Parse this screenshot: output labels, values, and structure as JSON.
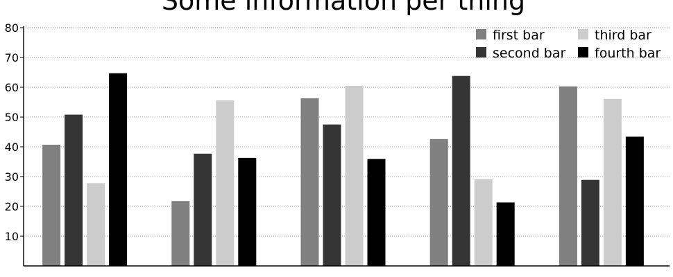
{
  "chart_data": {
    "type": "bar",
    "title": "Some information per thing",
    "xlabel": "",
    "ylabel": "",
    "ylim": [
      0,
      80
    ],
    "yticks": [
      10,
      20,
      30,
      40,
      50,
      60,
      70,
      80
    ],
    "grid": true,
    "legend_position": "top-right",
    "categories": [
      "",
      "",
      "",
      "",
      ""
    ],
    "series": [
      {
        "name": "first bar",
        "color": "#808080",
        "values": [
          40.7,
          21.8,
          56.3,
          42.6,
          60.3
        ]
      },
      {
        "name": "second bar",
        "color": "#353535",
        "values": [
          50.8,
          37.7,
          47.5,
          63.8,
          28.9
        ]
      },
      {
        "name": "third bar",
        "color": "#cccccc",
        "values": [
          27.8,
          55.6,
          60.5,
          29.1,
          56.1
        ]
      },
      {
        "name": "fourth bar",
        "color": "#000000",
        "values": [
          64.7,
          36.3,
          35.9,
          21.3,
          43.4
        ]
      }
    ]
  }
}
